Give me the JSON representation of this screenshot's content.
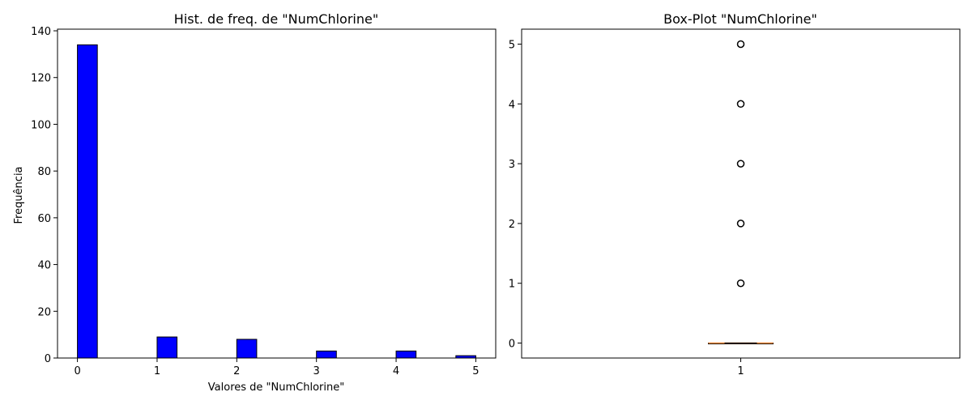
{
  "chart_data": [
    {
      "type": "bar",
      "title": "Hist. de freq. de \"NumChlorine\"",
      "xlabel": "Valores de \"NumChlorine\"",
      "ylabel": "Frequência",
      "xlim": [
        -0.25,
        5.25
      ],
      "ylim": [
        0,
        140.7
      ],
      "xticks": [
        0,
        1,
        2,
        3,
        4,
        5
      ],
      "yticks": [
        0,
        20,
        40,
        60,
        80,
        100,
        120,
        140
      ],
      "bar_color": "#0000ff",
      "edge_color": "#000000",
      "bins": [
        {
          "x0": 0.0,
          "x1": 0.25,
          "value": 134
        },
        {
          "x0": 1.0,
          "x1": 1.25,
          "value": 9
        },
        {
          "x0": 2.0,
          "x1": 2.25,
          "value": 8
        },
        {
          "x0": 3.0,
          "x1": 3.25,
          "value": 3
        },
        {
          "x0": 4.0,
          "x1": 4.25,
          "value": 3
        },
        {
          "x0": 4.75,
          "x1": 5.0,
          "value": 1
        }
      ]
    },
    {
      "type": "box",
      "title": "Box-Plot \"NumChlorine\"",
      "xticks": [
        1
      ],
      "yticks": [
        0,
        1,
        2,
        3,
        4,
        5
      ],
      "ylim": [
        -0.25,
        5.25
      ],
      "box": {
        "q1": 0,
        "median": 0,
        "q3": 0,
        "whisker_low": 0,
        "whisker_high": 0
      },
      "outliers": [
        1,
        2,
        3,
        4,
        5
      ],
      "median_color": "#e8873a"
    }
  ]
}
